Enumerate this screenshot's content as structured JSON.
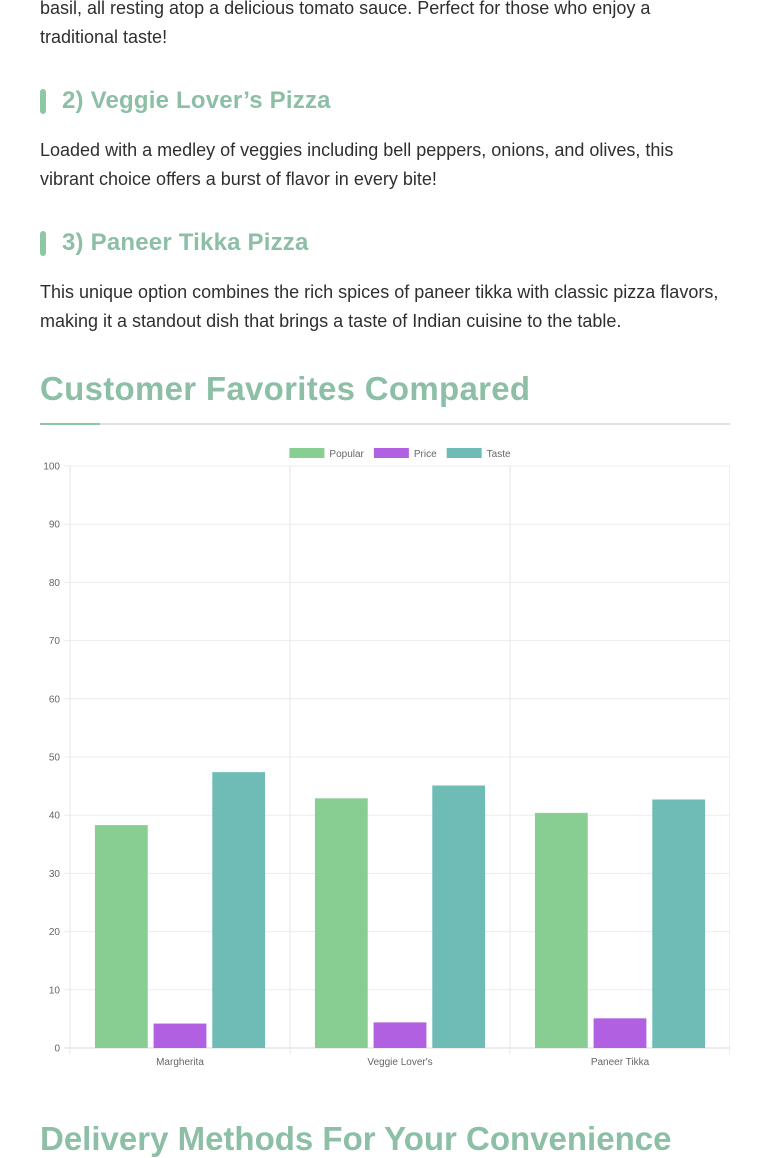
{
  "intro": {
    "paragraph_tail": "basil, all resting atop a delicious tomato sauce. Perfect for those who enjoy a traditional taste!"
  },
  "pizzas": [
    {
      "heading": "2) Veggie Lover’s Pizza",
      "description": "Loaded with a medley of veggies including bell peppers, onions, and olives, this vibrant choice offers a burst of flavor in every bite!"
    },
    {
      "heading": "3) Paneer Tikka Pizza",
      "description": "This unique option combines the rich spices of paneer tikka with classic pizza flavors, making it a standout dish that brings a taste of Indian cuisine to the table."
    }
  ],
  "section": {
    "title": "Customer Favorites Compared"
  },
  "next_section": {
    "title": "Delivery Methods For Your Convenience"
  },
  "colors": {
    "accent": "#8cbfa5",
    "popular": "#88cd92",
    "price": "#b060e0",
    "taste": "#6fbcb6"
  },
  "chart_data": {
    "type": "bar",
    "categories": [
      "Margherita",
      "Veggie Lover's",
      "Paneer Tikka"
    ],
    "series": [
      {
        "name": "Popular",
        "values": [
          38.3,
          42.9,
          40.4
        ],
        "color": "#88cd92"
      },
      {
        "name": "Price",
        "values": [
          4.2,
          4.4,
          5.1
        ],
        "color": "#b060e0"
      },
      {
        "name": "Taste",
        "values": [
          47.4,
          45.1,
          42.7
        ],
        "color": "#6fbcb6"
      }
    ],
    "ylim": [
      0,
      100
    ],
    "yticks": [
      0,
      10,
      20,
      30,
      40,
      50,
      60,
      70,
      80,
      90,
      100
    ],
    "grid": true,
    "legend": "top-center",
    "title": "",
    "xlabel": "",
    "ylabel": ""
  }
}
